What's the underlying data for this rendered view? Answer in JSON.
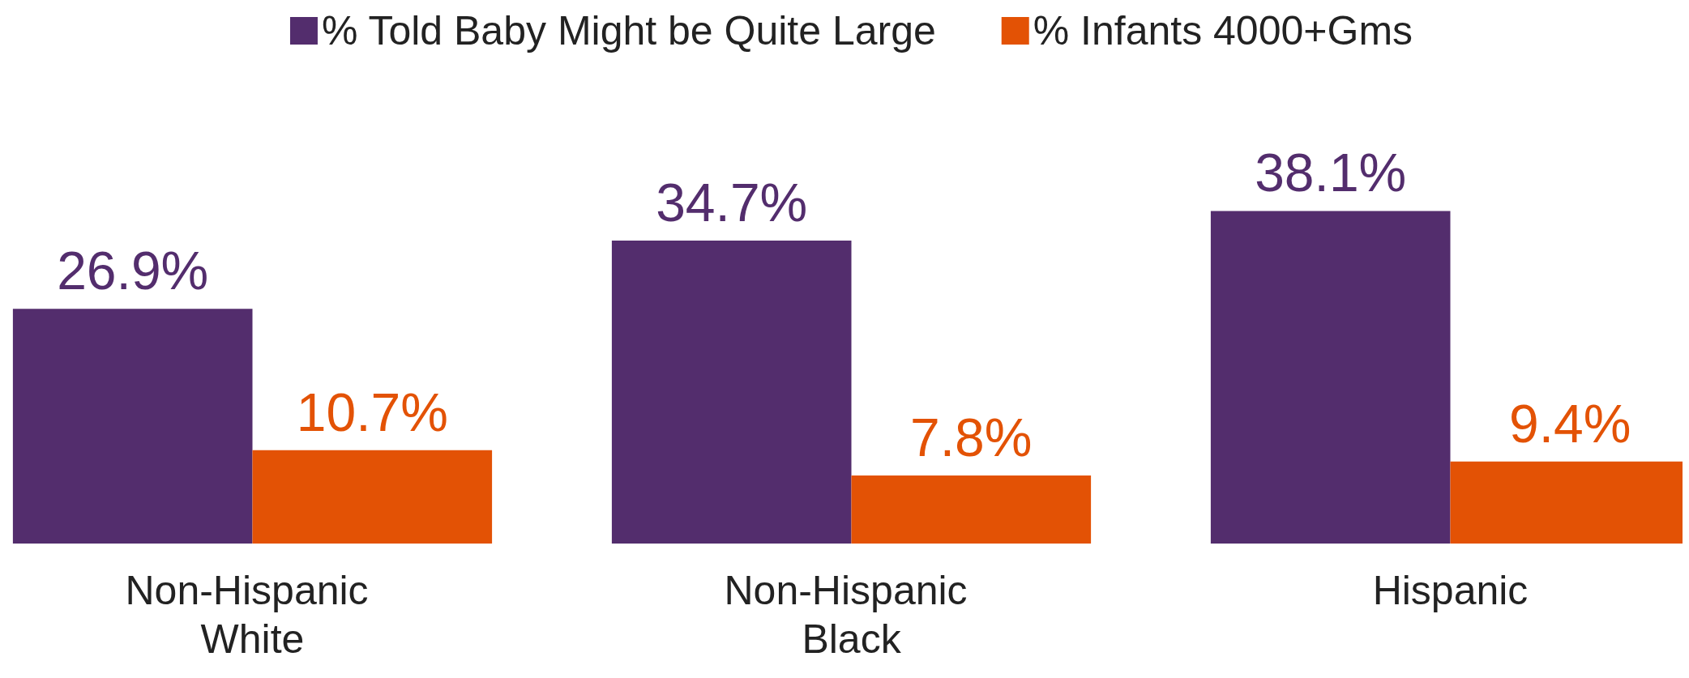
{
  "chart_data": {
    "type": "bar",
    "categories": [
      "Non-Hispanic White",
      "Non-Hispanic Black",
      "Hispanic"
    ],
    "series": [
      {
        "name": "% Told Baby Might be Quite Large",
        "color": "#532d6d",
        "values": [
          26.9,
          34.7,
          38.1
        ],
        "value_labels": [
          "26.9%",
          "34.7%",
          "38.1%"
        ]
      },
      {
        "name": "% Infants 4000+Gms",
        "color": "#e35205",
        "values": [
          10.7,
          7.8,
          9.4
        ],
        "value_labels": [
          "10.7%",
          "7.8%",
          "9.4%"
        ]
      }
    ],
    "legend": "top"
  }
}
